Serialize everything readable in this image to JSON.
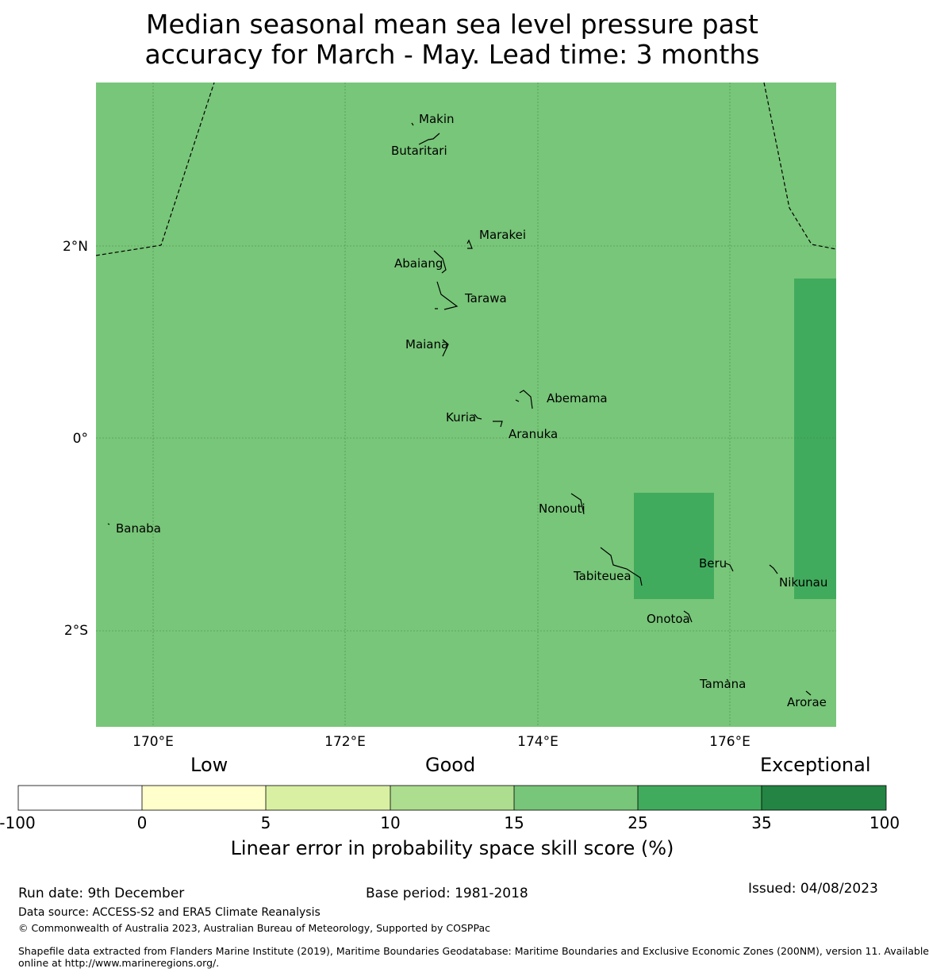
{
  "title": {
    "line1": "Median seasonal mean sea level pressure past",
    "line2": "accuracy for March - May. Lead time: 3 months"
  },
  "map": {
    "base_color": "#78c679",
    "highlight_color": "#41ab5d",
    "x_ticks": [
      "170°E",
      "172°E",
      "174°E",
      "176°E"
    ],
    "y_ticks": [
      "2°N",
      "0°",
      "2°S"
    ],
    "places": [
      "Makin",
      "Butaritari",
      "Marakei",
      "Abaiang",
      "Tarawa",
      "Maiana",
      "Abemama",
      "Kuria",
      "Aranuka",
      "Nonouti",
      "Banaba",
      "Beru",
      "Tabiteuea",
      "Nikunau",
      "Onotoa",
      "Tamana",
      "Arorae"
    ]
  },
  "legend": {
    "categories": [
      "Low",
      "Good",
      "Exceptional"
    ],
    "bins": [
      {
        "from": -100,
        "to": 0,
        "color": "#ffffff"
      },
      {
        "from": 0,
        "to": 5,
        "color": "#ffffcc"
      },
      {
        "from": 5,
        "to": 10,
        "color": "#d9f0a3"
      },
      {
        "from": 10,
        "to": 15,
        "color": "#addd8e"
      },
      {
        "from": 15,
        "to": 25,
        "color": "#78c679"
      },
      {
        "from": 25,
        "to": 35,
        "color": "#41ab5d"
      },
      {
        "from": 35,
        "to": 100,
        "color": "#238443"
      }
    ],
    "ticks": [
      "-100",
      "0",
      "5",
      "10",
      "15",
      "25",
      "35",
      "100"
    ],
    "label": "Linear error in probability space skill score (%)"
  },
  "footer": {
    "run_date": "Run date: 9th December",
    "base_period": "Base period: 1981-2018",
    "issued": "Issued: 04/08/2023",
    "data_source": "Data source: ACCESS-S2 and ERA5 Climate Reanalysis",
    "copyright": "© Commonwealth of Australia 2023, Australian Bureau of Meteorology, Supported by COSPPac",
    "shapefile_line1": "Shapefile data extracted from Flanders Marine Institute (2019), Maritime Boundaries Geodatabase: Maritime Boundaries and Exclusive Economic Zones (200NM), version 11. Available",
    "shapefile_line2": "online at http://www.marineregions.org/."
  }
}
